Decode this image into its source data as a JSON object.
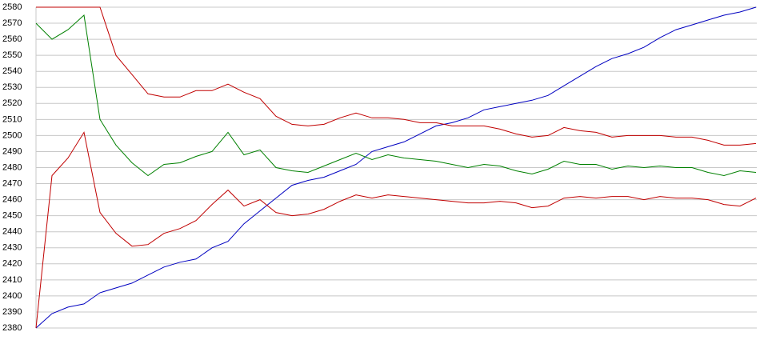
{
  "chart_data": {
    "type": "line",
    "ylim": [
      2380,
      2580
    ],
    "yticks": [
      2380,
      2390,
      2400,
      2410,
      2420,
      2430,
      2440,
      2450,
      2460,
      2470,
      2480,
      2490,
      2500,
      2510,
      2520,
      2530,
      2540,
      2550,
      2560,
      2570,
      2580
    ],
    "grid": true,
    "series": [
      {
        "color": "#0000c0",
        "values": [
          2380,
          2389,
          2393,
          2395,
          2402,
          2405,
          2408,
          2413,
          2418,
          2421,
          2423,
          2430,
          2434,
          2445,
          2453,
          2461,
          2469,
          2472,
          2474,
          2478,
          2482,
          2490,
          2493,
          2496,
          2501,
          2506,
          2508,
          2511,
          2516,
          2518,
          2520,
          2522,
          2525,
          2531,
          2537,
          2543,
          2548,
          2551,
          2555,
          2561,
          2566,
          2569,
          2572,
          2575,
          2577,
          2580
        ]
      },
      {
        "color": "#008000",
        "values": [
          2570,
          2560,
          2566,
          2575,
          2510,
          2494,
          2483,
          2475,
          2482,
          2483,
          2487,
          2490,
          2502,
          2488,
          2491,
          2480,
          2478,
          2477,
          2481,
          2485,
          2489,
          2485,
          2488,
          2486,
          2485,
          2484,
          2482,
          2480,
          2482,
          2481,
          2478,
          2476,
          2479,
          2484,
          2482,
          2482,
          2479,
          2481,
          2480,
          2481,
          2480,
          2480,
          2477,
          2475,
          2478,
          2477
        ]
      },
      {
        "color": "#c00000",
        "values": [
          2580,
          2580,
          2580,
          2580,
          2580,
          2550,
          2538,
          2526,
          2524,
          2524,
          2528,
          2528,
          2532,
          2527,
          2523,
          2512,
          2507,
          2506,
          2507,
          2511,
          2514,
          2511,
          2511,
          2510,
          2508,
          2508,
          2506,
          2506,
          2506,
          2504,
          2501,
          2499,
          2500,
          2505,
          2503,
          2502,
          2499,
          2500,
          2500,
          2500,
          2499,
          2499,
          2497,
          2494,
          2494,
          2495
        ]
      },
      {
        "color": "#c00000",
        "values": [
          2380,
          2475,
          2486,
          2502,
          2452,
          2439,
          2431,
          2432,
          2439,
          2442,
          2447,
          2457,
          2466,
          2456,
          2460,
          2452,
          2450,
          2451,
          2454,
          2459,
          2463,
          2461,
          2463,
          2462,
          2461,
          2460,
          2459,
          2458,
          2458,
          2459,
          2458,
          2455,
          2456,
          2461,
          2462,
          2461,
          2462,
          2462,
          2460,
          2462,
          2461,
          2461,
          2460,
          2457,
          2456,
          2461
        ]
      }
    ]
  }
}
